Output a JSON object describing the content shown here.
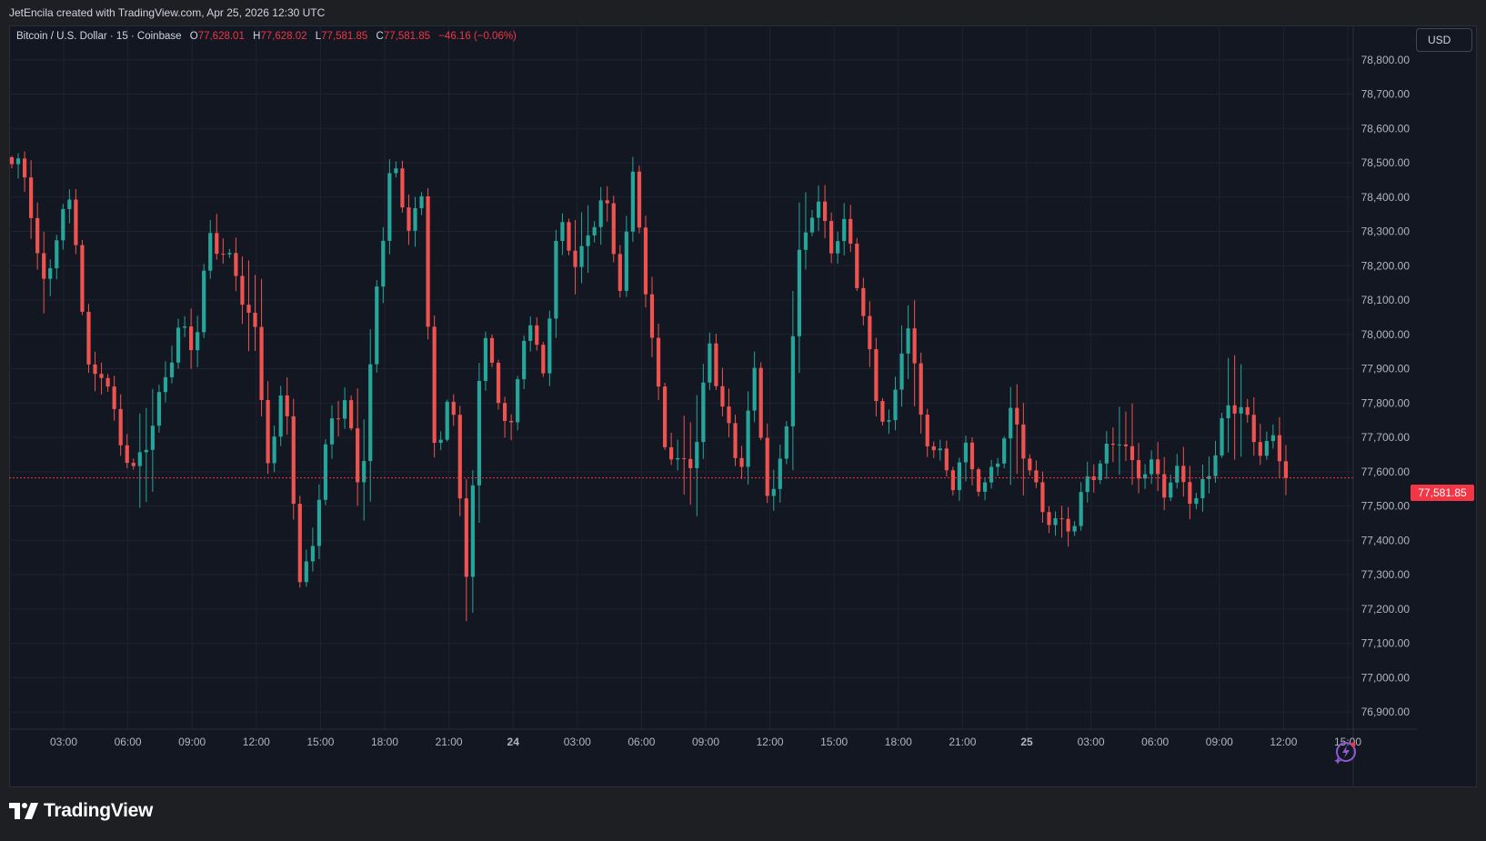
{
  "header": {
    "credit": "JetEncila created with TradingView.com, Apr 25, 2026 12:30 UTC"
  },
  "legend": {
    "symbol": "Bitcoin / U.S. Dollar · 15 · Coinbase",
    "o_label": "O",
    "o_value": "77,628.01",
    "h_label": "H",
    "h_value": "77,628.02",
    "l_label": "L",
    "l_value": "77,581.85",
    "c_label": "C",
    "c_value": "77,581.85",
    "change": "−46.16 (−0.06%)"
  },
  "toolbar": {
    "currency": "USD"
  },
  "last_price": "77,581.85",
  "footer": {
    "brand": "TradingView"
  },
  "colors": {
    "up": "#26a69a",
    "down": "#ef5350",
    "background": "#131722",
    "grid": "#1f2331",
    "last_price_line": "#f23645"
  },
  "icons": {
    "brand_logo": "tradingview-logo-icon",
    "spark": "lightning-spark-icon"
  },
  "chart_data": {
    "type": "candlestick",
    "interval_minutes": 15,
    "ylim": [
      76850,
      78900
    ],
    "y_ticks": [
      76900,
      77000,
      77100,
      77200,
      77300,
      77400,
      77500,
      77600,
      77700,
      77800,
      77900,
      78000,
      78100,
      78200,
      78300,
      78400,
      78500,
      78600,
      78700,
      78800
    ],
    "y_tick_labels": [
      "76,900.00",
      "77,000.00",
      "77,100.00",
      "77,200.00",
      "77,300.00",
      "77,400.00",
      "77,500.00",
      "77,600.00",
      "77,700.00",
      "77,800.00",
      "77,900.00",
      "78,000.00",
      "78,100.00",
      "78,200.00",
      "78,300.00",
      "78,400.00",
      "78,500.00",
      "78,600.00",
      "78,700.00",
      "78,800.00"
    ],
    "x_ticks": [
      "03:00",
      "06:00",
      "09:00",
      "12:00",
      "15:00",
      "18:00",
      "21:00",
      "24",
      "03:00",
      "06:00",
      "09:00",
      "12:00",
      "15:00",
      "18:00",
      "21:00",
      "25",
      "03:00",
      "06:00",
      "09:00",
      "12:00",
      "15:00"
    ],
    "x_tick_bold": [
      false,
      false,
      false,
      false,
      false,
      false,
      false,
      true,
      false,
      false,
      false,
      false,
      false,
      false,
      false,
      true,
      false,
      false,
      false,
      false,
      false
    ],
    "last_price": 77581.85,
    "anchors": [
      78480,
      78450,
      78140,
      78300,
      78380,
      77890,
      77920,
      77700,
      77580,
      77720,
      77860,
      78000,
      77950,
      78300,
      78240,
      78120,
      78020,
      77620,
      77860,
      77240,
      77460,
      77760,
      77780,
      77530,
      78120,
      78510,
      78300,
      78400,
      77610,
      77850,
      77240,
      78060,
      77820,
      77700,
      78090,
      77880,
      78320,
      78200,
      78280,
      78450,
      78100,
      78460,
      78080,
      77690,
      77590,
      77650,
      77990,
      77740,
      77590,
      77910,
      77470,
      77700,
      78260,
      78420,
      78250,
      78300,
      78110,
      77820,
      77710,
      78060,
      77750,
      77660,
      77550,
      77670,
      77550,
      77640,
      77760,
      77630,
      77500,
      77420,
      77440,
      77610,
      77640,
      77690,
      77600,
      77640,
      77540,
      77580,
      77520,
      77620,
      77750,
      77800,
      77690,
      77690,
      77580
    ]
  }
}
